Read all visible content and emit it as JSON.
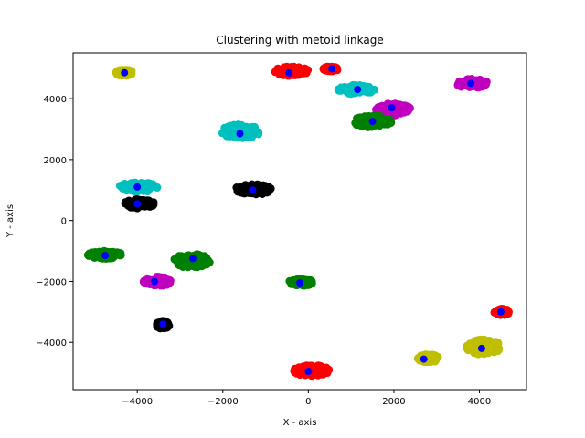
{
  "chart_data": {
    "type": "scatter",
    "title": "Clustering with metoid linkage",
    "xlabel": "X - axis",
    "ylabel": "Y - axis",
    "xlim": [
      -5500,
      5100
    ],
    "ylim": [
      -5550,
      5500
    ],
    "xticks": [
      -4000,
      -2000,
      0,
      2000,
      4000
    ],
    "yticks": [
      -4000,
      -2000,
      0,
      2000,
      4000
    ],
    "grid": false,
    "legend": "none",
    "colors": {
      "red": "#ff0000",
      "yellow": "#bfbf00",
      "cyan": "#00bfbf",
      "green": "#008000",
      "magenta": "#bf00bf",
      "black": "#000000",
      "medoid": "#0000ff"
    },
    "clusters": [
      {
        "color": "yellow",
        "x": [
          -4500,
          -4100
        ],
        "y": [
          4750,
          4950
        ],
        "medoid": [
          -4300,
          4850
        ]
      },
      {
        "color": "red",
        "x": [
          -800,
          0
        ],
        "y": [
          4750,
          5050
        ],
        "medoid": [
          -450,
          4850
        ]
      },
      {
        "color": "red",
        "x": [
          350,
          700
        ],
        "y": [
          4900,
          5050
        ],
        "medoid": [
          550,
          4980
        ]
      },
      {
        "color": "cyan",
        "x": [
          700,
          1550
        ],
        "y": [
          4150,
          4450
        ],
        "medoid": [
          1150,
          4300
        ]
      },
      {
        "color": "magenta",
        "x": [
          1550,
          2400
        ],
        "y": [
          3450,
          3850
        ],
        "medoid": [
          1950,
          3700
        ]
      },
      {
        "color": "green",
        "x": [
          1050,
          1950
        ],
        "y": [
          3050,
          3450
        ],
        "medoid": [
          1500,
          3250
        ]
      },
      {
        "color": "magenta",
        "x": [
          3450,
          4200
        ],
        "y": [
          4350,
          4650
        ],
        "medoid": [
          3800,
          4500
        ]
      },
      {
        "color": "cyan",
        "x": [
          -2050,
          -1100
        ],
        "y": [
          2700,
          3150
        ],
        "medoid": [
          -1600,
          2850
        ]
      },
      {
        "color": "cyan",
        "x": [
          -4450,
          -3500
        ],
        "y": [
          950,
          1250
        ],
        "medoid": [
          -4000,
          1100
        ]
      },
      {
        "color": "black",
        "x": [
          -4300,
          -3600
        ],
        "y": [
          400,
          700
        ],
        "medoid": [
          -4000,
          550
        ]
      },
      {
        "color": "black",
        "x": [
          -1700,
          -850
        ],
        "y": [
          850,
          1200
        ],
        "medoid": [
          -1300,
          1000
        ]
      },
      {
        "color": "green",
        "x": [
          -5150,
          -4350
        ],
        "y": [
          -1250,
          -1000
        ],
        "medoid": [
          -4750,
          -1150
        ]
      },
      {
        "color": "green",
        "x": [
          -3150,
          -2300
        ],
        "y": [
          -1550,
          -1100
        ],
        "medoid": [
          -2700,
          -1250
        ]
      },
      {
        "color": "magenta",
        "x": [
          -3850,
          -3200
        ],
        "y": [
          -2150,
          -1850
        ],
        "medoid": [
          -3600,
          -2000
        ]
      },
      {
        "color": "green",
        "x": [
          -450,
          100
        ],
        "y": [
          -2150,
          -1900
        ],
        "medoid": [
          -200,
          -2050
        ]
      },
      {
        "color": "black",
        "x": [
          -3550,
          -3250
        ],
        "y": [
          -3550,
          -3300
        ],
        "medoid": [
          -3400,
          -3400
        ]
      },
      {
        "color": "red",
        "x": [
          -350,
          500
        ],
        "y": [
          -5100,
          -4750
        ],
        "medoid": [
          0,
          -4950
        ]
      },
      {
        "color": "yellow",
        "x": [
          2550,
          3050
        ],
        "y": [
          -4650,
          -4400
        ],
        "medoid": [
          2700,
          -4550
        ]
      },
      {
        "color": "yellow",
        "x": [
          3700,
          4500
        ],
        "y": [
          -4400,
          -3900
        ],
        "medoid": [
          4050,
          -4200
        ]
      },
      {
        "color": "red",
        "x": [
          4350,
          4700
        ],
        "y": [
          -3100,
          -2900
        ],
        "medoid": [
          4500,
          -3000
        ]
      }
    ]
  }
}
